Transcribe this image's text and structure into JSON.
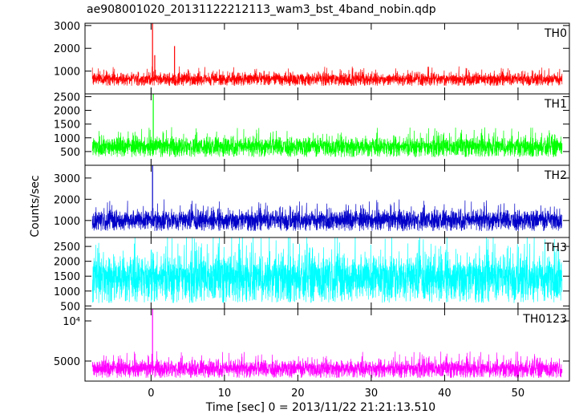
{
  "chart_data": {
    "type": "line",
    "title": "ae908001020_20131122212113_wam3_bst_4band_nobin.qdp",
    "xlabel": "Time [sec] 0 = 2013/11/22 21:21:13.510",
    "ylabel": "Counts/sec",
    "xlim": [
      -9,
      57
    ],
    "x_ticks": [
      0,
      10,
      20,
      30,
      40,
      50
    ],
    "x_tick_labels": [
      "0",
      "10",
      "20",
      "30",
      "40",
      "50"
    ],
    "x_data_range": [
      -8,
      56
    ],
    "panels": [
      {
        "name": "TH0",
        "color": "#ff0000",
        "ylim": [
          0,
          3100
        ],
        "yticks": [
          1000,
          2000,
          3000
        ],
        "ytick_labels": [
          "1000",
          "2000",
          "3000"
        ],
        "baseline": 750,
        "noise_low": 350,
        "noise_high": 1100,
        "spikes": [
          {
            "x": 0.2,
            "y": 3100
          },
          {
            "x": 3.2,
            "y": 2100
          },
          {
            "x": 0.5,
            "y": 1700
          }
        ]
      },
      {
        "name": "TH1",
        "color": "#00ff00",
        "ylim": [
          0,
          2600
        ],
        "yticks": [
          500,
          1000,
          1500,
          2000,
          2500
        ],
        "ytick_labels": [
          "500",
          "1000",
          "1500",
          "2000",
          "2500"
        ],
        "baseline": 750,
        "noise_low": 300,
        "noise_high": 1250,
        "spikes": [
          {
            "x": 0.3,
            "y": 2600
          }
        ]
      },
      {
        "name": "TH2",
        "color": "#0000c8",
        "ylim": [
          200,
          3600
        ],
        "yticks": [
          1000,
          2000,
          3000
        ],
        "ytick_labels": [
          "1000",
          "2000",
          "3000"
        ],
        "baseline": 1200,
        "noise_low": 500,
        "noise_high": 1800,
        "spikes": [
          {
            "x": 0.2,
            "y": 3600
          }
        ]
      },
      {
        "name": "TH3",
        "color": "#00ffff",
        "ylim": [
          400,
          2800
        ],
        "yticks": [
          500,
          1000,
          1500,
          2000,
          2500
        ],
        "ytick_labels": [
          "500",
          "1000",
          "1500",
          "2000",
          "2500"
        ],
        "baseline": 1450,
        "noise_low": 600,
        "noise_high": 2750,
        "spikes": []
      },
      {
        "name": "TH0123",
        "color": "#ff00ff",
        "ylim": [
          2500,
          11500
        ],
        "yticks": [
          5000,
          10000
        ],
        "ytick_labels": [
          "5000",
          "10⁴"
        ],
        "baseline": 4200,
        "noise_low": 2900,
        "noise_high": 5800,
        "spikes": [
          {
            "x": 0.2,
            "y": 11500
          }
        ]
      }
    ]
  }
}
